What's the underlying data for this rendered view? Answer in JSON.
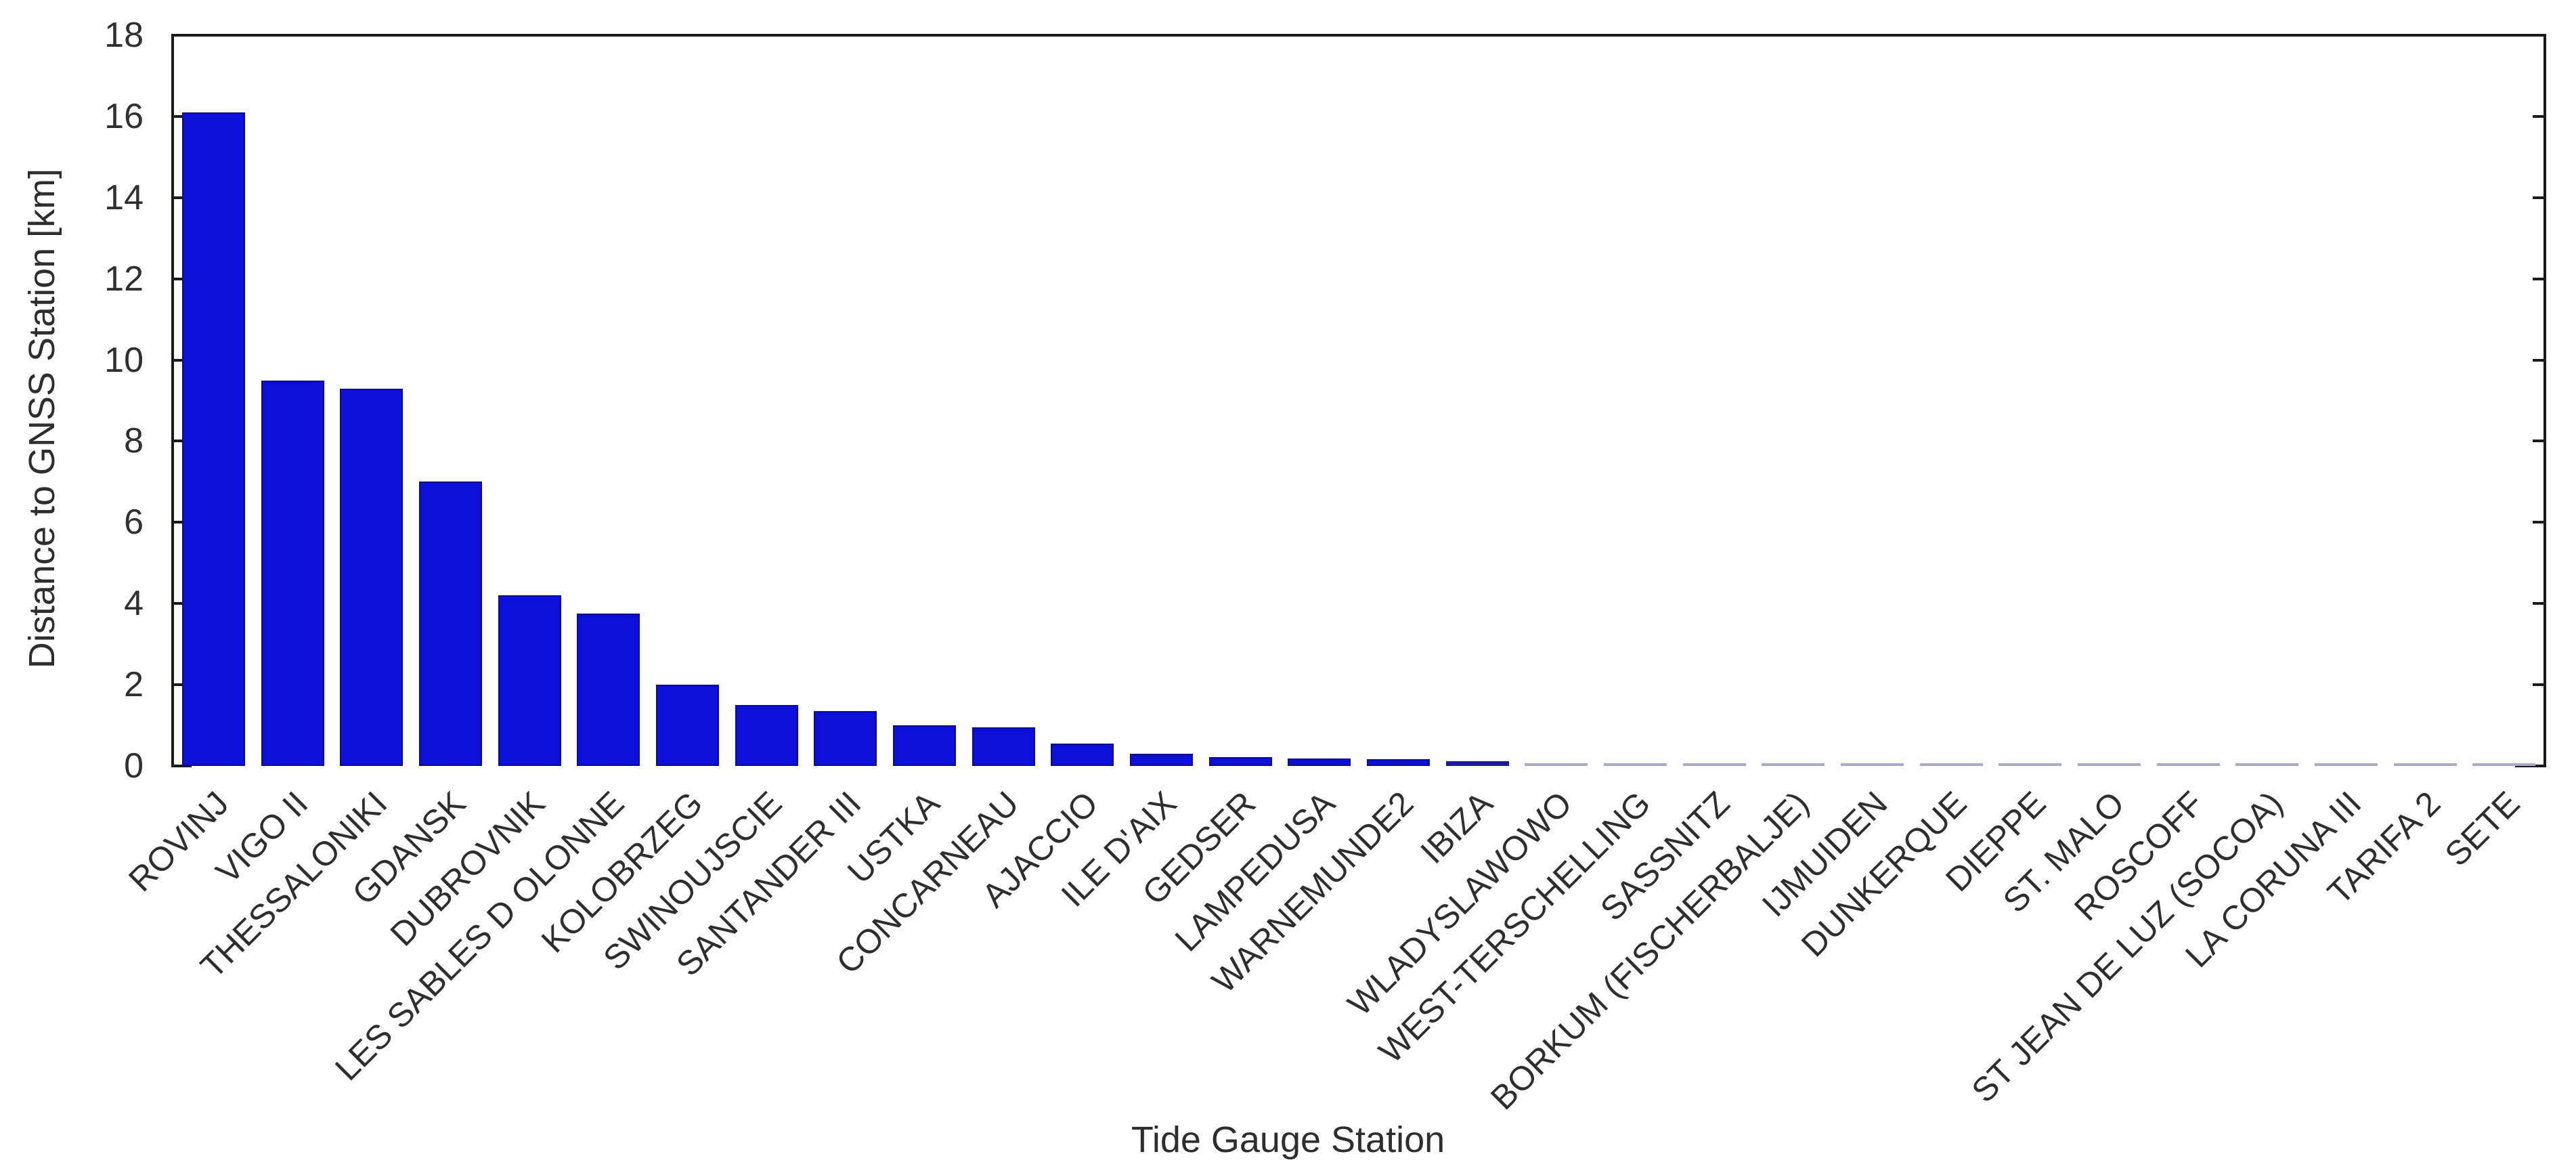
{
  "figure": {
    "background": "#ffffff",
    "y_axis_title": "Distance to GNSS Station [km]",
    "x_axis_title": "Tide Gauge Station"
  },
  "colors": {
    "bar_fill": "#0d10d8",
    "bar_edge": "#0a0a96",
    "bar_small_navy": "#1b1b9a",
    "bar_tiny_gray": "#a8aacb",
    "axis_line": "#1a1a1a",
    "text": "#2e2e2e"
  },
  "chart_data": {
    "type": "bar",
    "title": "",
    "xlabel": "Tide Gauge Station",
    "ylabel": "Distance to GNSS Station [km]",
    "ylim": [
      0,
      18
    ],
    "y_ticks": [
      "0",
      "2",
      "4",
      "6",
      "8",
      "10",
      "12",
      "14",
      "16",
      "18"
    ],
    "grid": false,
    "legend": null,
    "bar_color": "#0d10d8",
    "categories": [
      "ROVINJ",
      "VIGO II",
      "THESSALONIKI",
      "GDANSK",
      "DUBROVNIK",
      "LES SABLES D OLONNE",
      "KOLOBRZEG",
      "SWINOUJSCIE",
      "SANTANDER III",
      "USTKA",
      "CONCARNEAU",
      "AJACCIO",
      "ILE D'AIX",
      "GEDSER",
      "LAMPEDUSA",
      "WARNEMUNDE2",
      "IBIZA",
      "WLADYSLAWOWO",
      "WEST-TERSCHELLING",
      "SASSNITZ",
      "BORKUM (FISCHERBALJE)",
      "IJMUIDEN",
      "DUNKERQUE",
      "DIEPPE",
      "ST. MALO",
      "ROSCOFF",
      "ST JEAN DE LUZ (SOCOA)",
      "LA CORUNA III",
      "TARIFA 2",
      "SETE"
    ],
    "values": [
      16.1,
      9.5,
      9.3,
      7.0,
      4.2,
      3.75,
      2.0,
      1.5,
      1.35,
      1.0,
      0.95,
      0.55,
      0.3,
      0.22,
      0.18,
      0.16,
      0.12,
      0.05,
      0.03,
      0.03,
      0.03,
      0.03,
      0.02,
      0.02,
      0.02,
      0.02,
      0.02,
      0.02,
      0.02,
      0.01
    ]
  }
}
